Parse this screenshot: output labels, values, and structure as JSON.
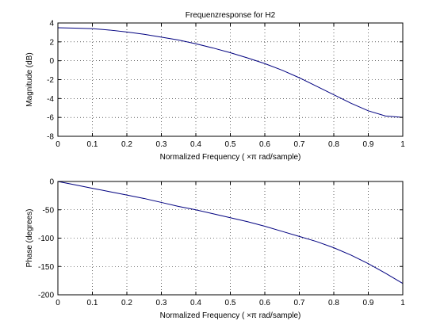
{
  "chart_data": [
    {
      "type": "line",
      "title": "Frequenzresponse for H2",
      "xlabel": "Normalized Frequency ( ×π rad/sample)",
      "ylabel": "Magnitude (dB)",
      "xlim": [
        0,
        1
      ],
      "ylim": [
        -8,
        4
      ],
      "xticks": [
        0,
        0.1,
        0.2,
        0.3,
        0.4,
        0.5,
        0.6,
        0.7,
        0.8,
        0.9,
        1
      ],
      "xtick_labels": [
        "0",
        "0.1",
        "0.2",
        "0.3",
        "0.4",
        "0.5",
        "0.6",
        "0.7",
        "0.8",
        "0.9",
        "1"
      ],
      "yticks": [
        -8,
        -6,
        -4,
        -2,
        0,
        2,
        4
      ],
      "ytick_labels": [
        "-8",
        "-6",
        "-4",
        "-2",
        "0",
        "2",
        "4"
      ],
      "grid": true,
      "color": "#000080",
      "x": [
        0,
        0.05,
        0.1,
        0.15,
        0.2,
        0.25,
        0.3,
        0.35,
        0.4,
        0.45,
        0.5,
        0.55,
        0.6,
        0.65,
        0.7,
        0.75,
        0.8,
        0.85,
        0.9,
        0.95,
        1
      ],
      "y": [
        3.5,
        3.45,
        3.4,
        3.25,
        3.05,
        2.8,
        2.5,
        2.2,
        1.8,
        1.35,
        0.85,
        0.3,
        -0.3,
        -1.0,
        -1.8,
        -2.7,
        -3.6,
        -4.5,
        -5.3,
        -5.85,
        -6.0
      ]
    },
    {
      "type": "line",
      "title": "",
      "xlabel": "Normalized Frequency ( ×π rad/sample)",
      "ylabel": "Phase (degrees)",
      "xlim": [
        0,
        1
      ],
      "ylim": [
        -200,
        0
      ],
      "xticks": [
        0,
        0.1,
        0.2,
        0.3,
        0.4,
        0.5,
        0.6,
        0.7,
        0.8,
        0.9,
        1
      ],
      "xtick_labels": [
        "0",
        "0.1",
        "0.2",
        "0.3",
        "0.4",
        "0.5",
        "0.6",
        "0.7",
        "0.8",
        "0.9",
        "1"
      ],
      "yticks": [
        -200,
        -150,
        -100,
        -50,
        0
      ],
      "ytick_labels": [
        "-200",
        "-150",
        "-100",
        "-50",
        "0"
      ],
      "grid": true,
      "color": "#000080",
      "x": [
        0,
        0.05,
        0.1,
        0.15,
        0.2,
        0.25,
        0.3,
        0.35,
        0.4,
        0.45,
        0.5,
        0.55,
        0.6,
        0.65,
        0.7,
        0.75,
        0.8,
        0.85,
        0.9,
        0.95,
        1
      ],
      "y": [
        0,
        -6,
        -12,
        -18,
        -24,
        -30,
        -37,
        -44,
        -50,
        -57,
        -64,
        -71,
        -79,
        -88,
        -97,
        -106,
        -117,
        -130,
        -145,
        -162,
        -180
      ]
    }
  ]
}
